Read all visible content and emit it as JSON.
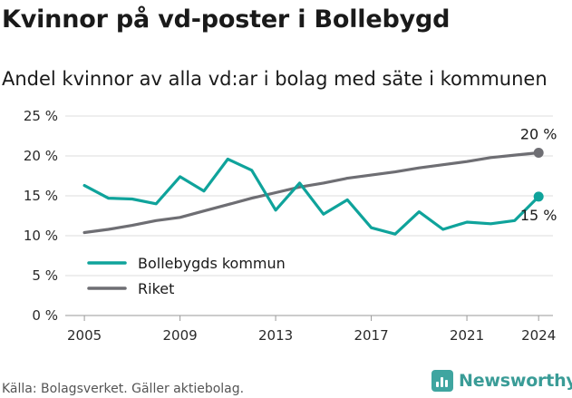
{
  "header": {
    "title": "Kvinnor på vd-poster i Bollebygd",
    "subtitle": "Andel kvinnor av alla vd:ar i bolag med säte i kommunen"
  },
  "footer": {
    "source": "Källa: Bolagsverket. Gäller aktiebolag.",
    "brand": "Newsworthy"
  },
  "colors": {
    "bollebygd": "#0fa39b",
    "riket": "#6e6e73",
    "grid": "#dedede"
  },
  "chart_data": {
    "type": "line",
    "title": "Kvinnor på vd-poster i Bollebygd",
    "subtitle": "Andel kvinnor av alla vd:ar i bolag med säte i kommunen",
    "x": [
      2005,
      2006,
      2007,
      2008,
      2009,
      2010,
      2011,
      2012,
      2013,
      2014,
      2015,
      2016,
      2017,
      2018,
      2019,
      2020,
      2021,
      2022,
      2023,
      2024
    ],
    "xlim": [
      2004.2,
      2024.6
    ],
    "ylim": [
      0,
      25
    ],
    "xticks": [
      2005,
      2009,
      2013,
      2017,
      2021,
      2024
    ],
    "yticks": [
      0,
      5,
      10,
      15,
      20,
      25
    ],
    "ytick_labels": [
      "0 %",
      "5 %",
      "10 %",
      "15 %",
      "20 %",
      "25 %"
    ],
    "grid": "horizontal",
    "legend_position": "bottom-left",
    "series": [
      {
        "name": "Bollebygds kommun",
        "color": "#0fa39b",
        "values": [
          16.3,
          14.7,
          14.6,
          14.0,
          17.4,
          15.6,
          19.6,
          18.2,
          13.2,
          16.6,
          12.7,
          14.5,
          11.0,
          10.2,
          13.0,
          10.8,
          11.7,
          11.5,
          11.9,
          14.9
        ],
        "end_label": "15 %"
      },
      {
        "name": "Riket",
        "color": "#6e6e73",
        "values": [
          10.4,
          10.8,
          11.3,
          11.9,
          12.3,
          13.1,
          13.9,
          14.7,
          15.4,
          16.1,
          16.6,
          17.2,
          17.6,
          18.0,
          18.5,
          18.9,
          19.3,
          19.8,
          20.1,
          20.4
        ],
        "end_label": "20 %"
      }
    ]
  }
}
